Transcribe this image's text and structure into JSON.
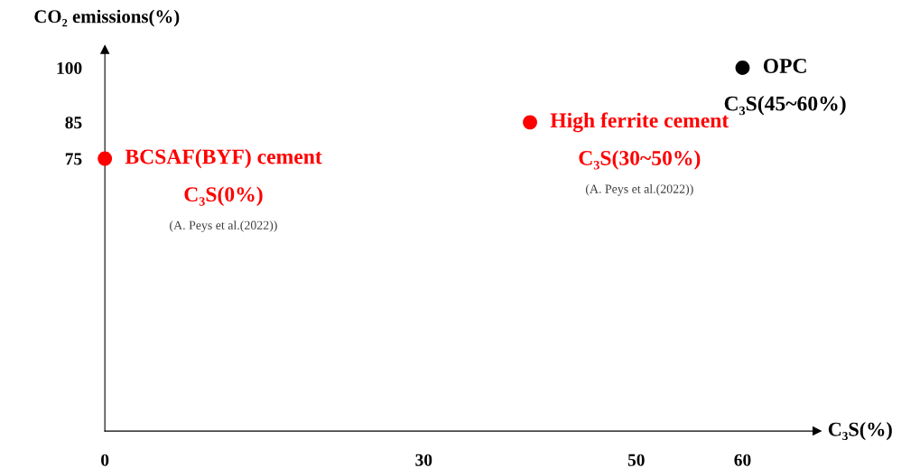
{
  "chart_data": {
    "type": "scatter",
    "ylabel": "CO₂ emissions(%)",
    "xlabel": "C₃S(%)",
    "x": [
      0,
      40,
      60
    ],
    "values": [
      75,
      85,
      100
    ],
    "colors": [
      "#ff0000",
      "#ff0000",
      "#000000"
    ],
    "marker": "circle",
    "xlim": [
      0,
      67
    ],
    "ylim": [
      0,
      105
    ],
    "xticks": [
      0,
      30,
      50,
      60
    ],
    "yticks": [
      75,
      85,
      100
    ],
    "grid": false,
    "legend": false,
    "annotations": [
      {
        "text": "BCSAF(BYF) cement",
        "x": 0,
        "y": 75
      },
      "C₃S(0%)",
      "(A. Peys et al.(2022))",
      {
        "text": "High ferrite cement",
        "x": 40,
        "y": 85
      },
      "C₃S(30~50%)",
      "(A. Peys et al.(2022))",
      {
        "text": "OPC",
        "x": 60,
        "y": 100
      },
      "C₃S(45~60%)"
    ]
  }
}
